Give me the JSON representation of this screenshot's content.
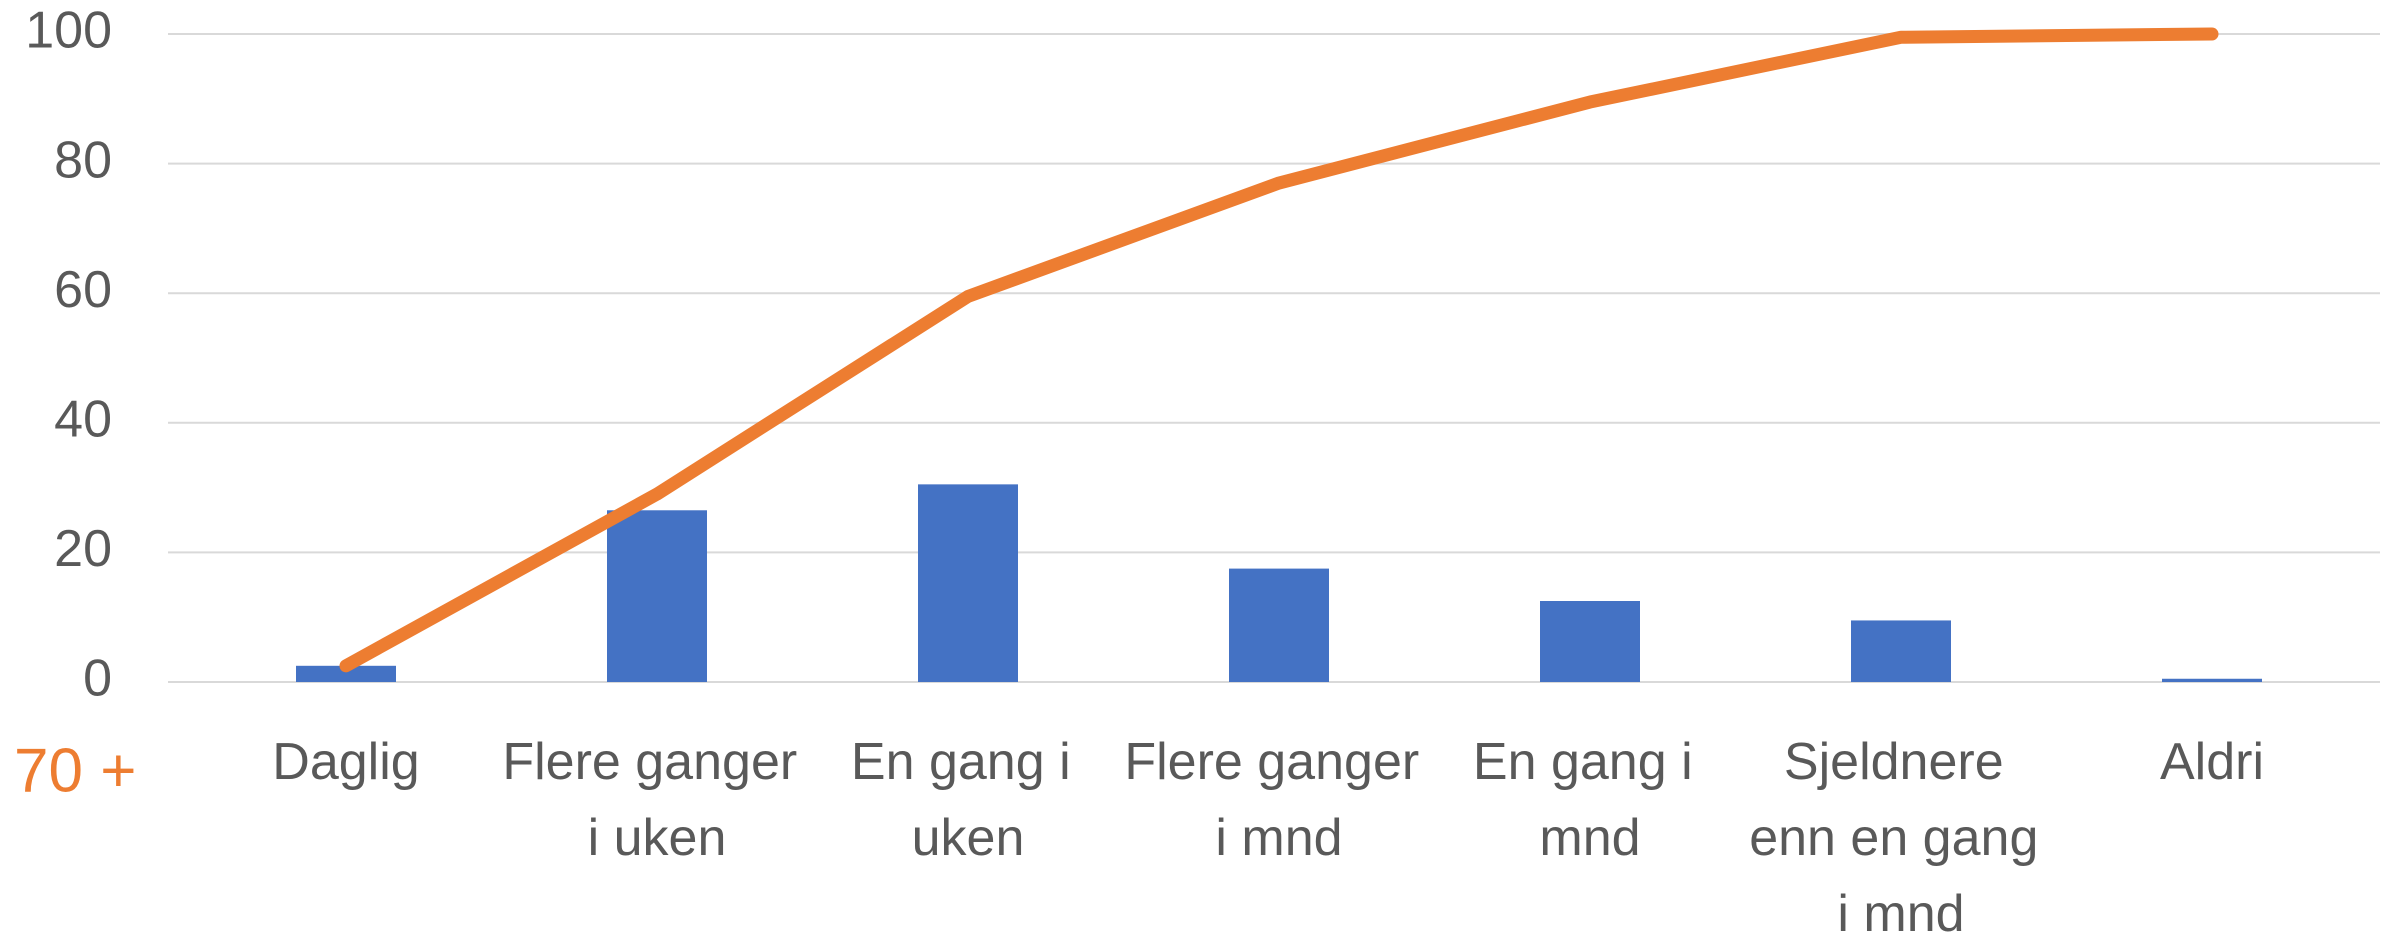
{
  "chart_data": {
    "type": "bar",
    "categories": [
      "Daglig",
      "Flere ganger i uken",
      "En gang i uken",
      "Flere ganger i mnd",
      "En gang i mnd",
      "Sjeldnere enn en gang i mnd",
      "Aldri"
    ],
    "series": [
      {
        "type": "bar",
        "color": "#4472c4",
        "values": [
          2.5,
          26.5,
          30.5,
          17.5,
          12.5,
          9.5,
          0.5
        ]
      },
      {
        "type": "line",
        "color": "#ed7d31",
        "values": [
          2.5,
          29,
          59.5,
          77,
          89.5,
          99.5,
          100
        ]
      }
    ],
    "ylim": [
      0,
      100
    ],
    "yticks": [
      0,
      20,
      40,
      60,
      80,
      100
    ],
    "grid": true,
    "annotation": "70 +",
    "annotation_color": "#ed7d31"
  }
}
